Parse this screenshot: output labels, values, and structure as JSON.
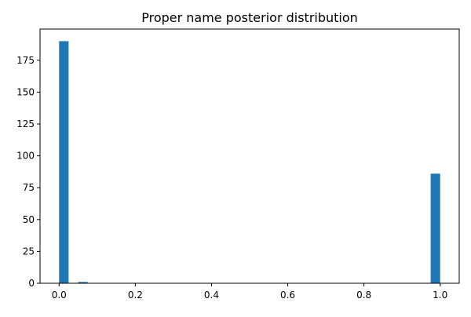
{
  "chart_data": {
    "type": "bar",
    "title": "Proper name posterior distribution",
    "xlabel": "",
    "ylabel": "",
    "xlim": [
      -0.05,
      1.05
    ],
    "ylim": [
      0,
      199.5
    ],
    "bin_width": 0.025,
    "bins": [
      {
        "x0": 0.0,
        "x1": 0.025,
        "value": 190
      },
      {
        "x0": 0.05,
        "x1": 0.075,
        "value": 1
      },
      {
        "x0": 0.975,
        "x1": 1.0,
        "value": 86
      }
    ],
    "x_ticks": [
      0.0,
      0.2,
      0.4,
      0.6,
      0.8,
      1.0
    ],
    "x_tick_labels": [
      "0.0",
      "0.2",
      "0.4",
      "0.6",
      "0.8",
      "1.0"
    ],
    "y_ticks": [
      0,
      25,
      50,
      75,
      100,
      125,
      150,
      175
    ],
    "y_tick_labels": [
      "0",
      "25",
      "50",
      "75",
      "100",
      "125",
      "150",
      "175"
    ],
    "grid": false,
    "colors": {
      "bar": "#1f77b4",
      "axis": "#000000",
      "background": "#ffffff"
    }
  }
}
